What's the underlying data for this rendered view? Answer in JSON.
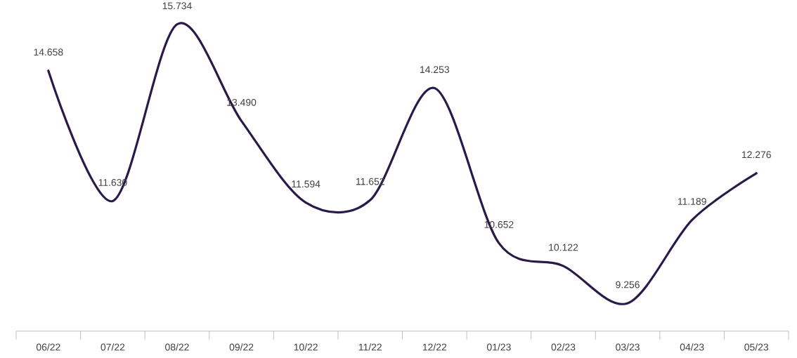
{
  "chart_data": {
    "type": "line",
    "categories": [
      "06/22",
      "07/22",
      "08/22",
      "09/22",
      "10/22",
      "11/22",
      "12/22",
      "01/23",
      "02/23",
      "03/23",
      "04/23",
      "05/23"
    ],
    "series": [
      {
        "color": "#2a1a4a",
        "values": [
          14.658,
          11.63,
          15.734,
          13.49,
          11.594,
          11.652,
          14.253,
          10.652,
          10.122,
          9.256,
          11.189,
          12.276
        ],
        "value_labels": [
          "14.658",
          "11.630",
          "15.734",
          "13.490",
          "11.594",
          "11.652",
          "14.253",
          "10.652",
          "10.122",
          "9.256",
          "11.189",
          "12.276"
        ]
      }
    ],
    "tick_labels": "x",
    "line_style": "solid"
  }
}
